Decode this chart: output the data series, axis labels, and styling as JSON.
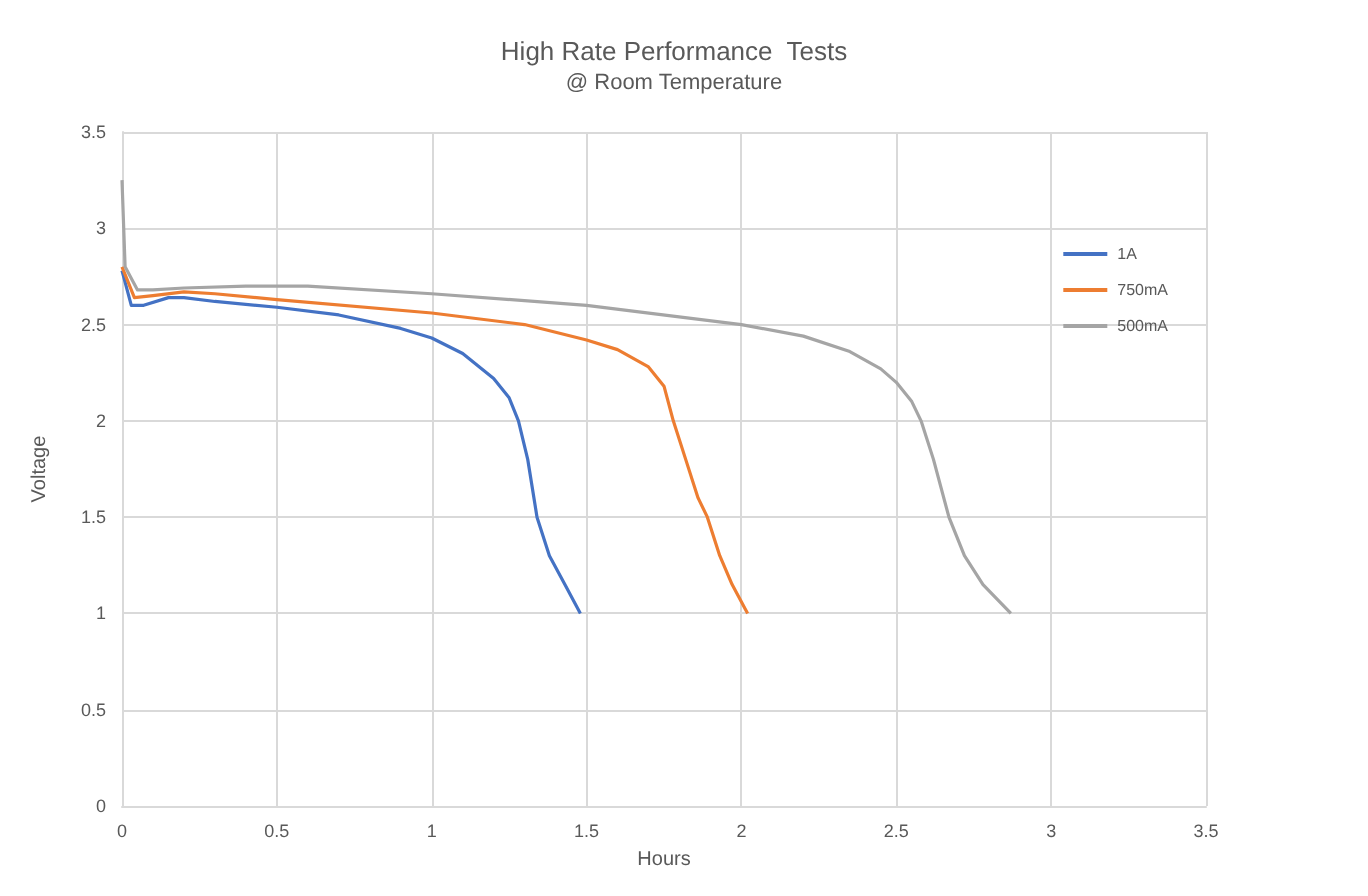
{
  "chart_data": {
    "type": "line",
    "title": "High Rate Performance  Tests",
    "subtitle": "@ Room Temperature",
    "xlabel": "Hours",
    "ylabel": "Voltage",
    "xlim": [
      0,
      3.5
    ],
    "xticks": [
      0,
      0.5,
      1,
      1.5,
      2,
      2.5,
      3,
      3.5
    ],
    "ylim": [
      0,
      3.5
    ],
    "yticks": [
      0,
      0.5,
      1,
      1.5,
      2,
      2.5,
      3,
      3.5
    ],
    "grid": true,
    "legend": "top right",
    "marker": "none",
    "line_style": "solid",
    "series": [
      {
        "name": "1A",
        "color": "#4472c4",
        "x": [
          0,
          0.03,
          0.07,
          0.15,
          0.2,
          0.3,
          0.5,
          0.7,
          0.9,
          1.0,
          1.1,
          1.2,
          1.25,
          1.28,
          1.31,
          1.34,
          1.38,
          1.43,
          1.48
        ],
        "values": [
          2.78,
          2.6,
          2.6,
          2.64,
          2.64,
          2.62,
          2.59,
          2.55,
          2.48,
          2.43,
          2.35,
          2.22,
          2.12,
          2.0,
          1.8,
          1.5,
          1.3,
          1.15,
          1.0
        ]
      },
      {
        "name": "750mA",
        "color": "#ed7d31",
        "x": [
          0,
          0.04,
          0.1,
          0.2,
          0.3,
          0.5,
          1.0,
          1.3,
          1.5,
          1.6,
          1.7,
          1.75,
          1.78,
          1.82,
          1.86,
          1.89,
          1.93,
          1.97,
          2.02
        ],
        "values": [
          2.8,
          2.64,
          2.65,
          2.67,
          2.66,
          2.63,
          2.56,
          2.5,
          2.42,
          2.37,
          2.28,
          2.18,
          2.0,
          1.8,
          1.6,
          1.5,
          1.3,
          1.15,
          1.0
        ]
      },
      {
        "name": "500mA",
        "color": "#a5a5a5",
        "x": [
          0,
          0.01,
          0.05,
          0.1,
          0.2,
          0.4,
          0.6,
          1.0,
          1.5,
          2.0,
          2.2,
          2.35,
          2.45,
          2.5,
          2.55,
          2.58,
          2.62,
          2.67,
          2.72,
          2.78,
          2.87
        ],
        "values": [
          3.25,
          2.8,
          2.68,
          2.68,
          2.69,
          2.7,
          2.7,
          2.66,
          2.6,
          2.5,
          2.44,
          2.36,
          2.27,
          2.2,
          2.1,
          2.0,
          1.8,
          1.5,
          1.3,
          1.15,
          1.0
        ]
      }
    ]
  }
}
